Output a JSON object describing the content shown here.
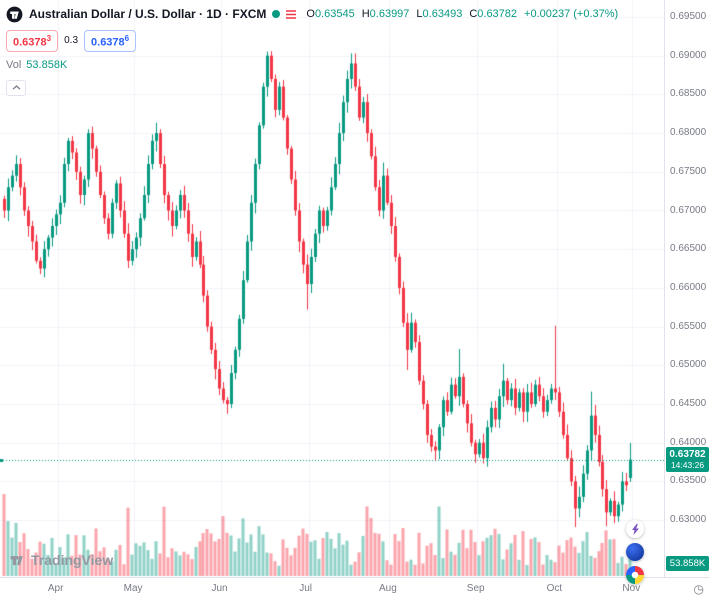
{
  "header": {
    "symbol_title": "Australian Dollar / U.S. Dollar · 1D · FXCM",
    "ohlc": {
      "o_label": "O",
      "o": "0.63545",
      "h_label": "H",
      "h": "0.63997",
      "l_label": "L",
      "l": "0.63493",
      "c_label": "C",
      "c": "0.63782",
      "change": "+0.00237 (+0.37%)"
    },
    "quote": {
      "sell": "0.6378",
      "sell_sup": "3",
      "spread": "0.3",
      "buy": "0.6378",
      "buy_sup": "6"
    },
    "volume_row": {
      "label": "Vol",
      "value": "53.858K"
    }
  },
  "price_axis": {
    "last_price_badge": {
      "price": "0.63782",
      "countdown": "14:43:26"
    },
    "volume_badge": "53.858K",
    "label_format": "0.00000"
  },
  "footer": {
    "brand": "TradingView"
  },
  "colors": {
    "up": "#089981",
    "down": "#f23645",
    "volume_up": "rgba(8,153,129,0.45)",
    "volume_down": "rgba(242,54,69,0.45)",
    "grid": "#f0f3fa",
    "axis_text": "#787b86",
    "title_text": "#131722",
    "buy_blue": "#2962ff",
    "sell_red": "#f23645",
    "badge": "#089981"
  },
  "chart_data": {
    "type": "candlestick",
    "title": "Australian Dollar / U.S. Dollar",
    "interval": "1D",
    "exchange": "FXCM",
    "ylabel": "",
    "xlabel": "",
    "grid": true,
    "y_axis": {
      "ticks": [
        0.695,
        0.69,
        0.685,
        0.68,
        0.675,
        0.67,
        0.665,
        0.66,
        0.655,
        0.65,
        0.645,
        0.64,
        0.635,
        0.63
      ]
    },
    "x_axis": {
      "months": [
        {
          "label": "Apr",
          "index": 14
        },
        {
          "label": "May",
          "index": 33
        },
        {
          "label": "Jun",
          "index": 55
        },
        {
          "label": "Jul",
          "index": 77
        },
        {
          "label": "Aug",
          "index": 97
        },
        {
          "label": "Sep",
          "index": 119
        },
        {
          "label": "Oct",
          "index": 139
        },
        {
          "label": "Nov",
          "index": 158
        }
      ]
    },
    "closes": [
      0.67,
      0.673,
      0.6745,
      0.676,
      0.673,
      0.67,
      0.668,
      0.666,
      0.6635,
      0.6625,
      0.665,
      0.6665,
      0.668,
      0.6695,
      0.671,
      0.676,
      0.679,
      0.6775,
      0.675,
      0.672,
      0.674,
      0.68,
      0.678,
      0.675,
      0.672,
      0.669,
      0.667,
      0.671,
      0.6735,
      0.67,
      0.667,
      0.6635,
      0.665,
      0.6665,
      0.669,
      0.672,
      0.676,
      0.679,
      0.68,
      0.676,
      0.672,
      0.67,
      0.668,
      0.67,
      0.672,
      0.67,
      0.667,
      0.664,
      0.666,
      0.663,
      0.659,
      0.655,
      0.652,
      0.6495,
      0.647,
      0.6455,
      0.645,
      0.649,
      0.652,
      0.656,
      0.661,
      0.666,
      0.671,
      0.676,
      0.681,
      0.686,
      0.69,
      0.687,
      0.683,
      0.686,
      0.682,
      0.678,
      0.674,
      0.67,
      0.666,
      0.663,
      0.6605,
      0.664,
      0.667,
      0.67,
      0.668,
      0.67,
      0.673,
      0.676,
      0.68,
      0.684,
      0.687,
      0.689,
      0.686,
      0.682,
      0.684,
      0.68,
      0.677,
      0.673,
      0.67,
      0.6745,
      0.671,
      0.668,
      0.664,
      0.66,
      0.6555,
      0.652,
      0.6555,
      0.653,
      0.648,
      0.645,
      0.641,
      0.6395,
      0.639,
      0.642,
      0.6455,
      0.644,
      0.6475,
      0.646,
      0.6485,
      0.645,
      0.6425,
      0.64,
      0.6385,
      0.64,
      0.638,
      0.642,
      0.6445,
      0.643,
      0.646,
      0.648,
      0.6455,
      0.647,
      0.6445,
      0.6465,
      0.644,
      0.6465,
      0.645,
      0.6475,
      0.646,
      0.644,
      0.6455,
      0.647,
      0.6465,
      0.644,
      0.641,
      0.638,
      0.635,
      0.6315,
      0.633,
      0.636,
      0.639,
      0.6435,
      0.641,
      0.6375,
      0.634,
      0.631,
      0.6325,
      0.6305,
      0.632,
      0.635,
      0.6345,
      0.63782
    ],
    "last_candle": {
      "open": 0.63545,
      "high": 0.63997,
      "low": 0.63493,
      "close": 0.63782
    },
    "wick_overrides": {
      "56": {
        "low": 0.644
      },
      "66": {
        "high": 0.6905
      },
      "76": {
        "low": 0.6572
      },
      "87": {
        "high": 0.6903
      },
      "95": {
        "high": 0.6762
      },
      "101": {
        "low": 0.6494
      },
      "108": {
        "low": 0.6376
      },
      "114": {
        "high": 0.6521
      },
      "118": {
        "low": 0.6374
      },
      "120": {
        "low": 0.6373
      },
      "125": {
        "high": 0.6502
      },
      "138": {
        "high": 0.6551
      },
      "143": {
        "low": 0.6291
      },
      "147": {
        "high": 0.6466
      },
      "151": {
        "low": 0.6292
      },
      "153": {
        "low": 0.6296
      }
    },
    "current_price": 0.63782,
    "last_volume_k": 53.858
  }
}
